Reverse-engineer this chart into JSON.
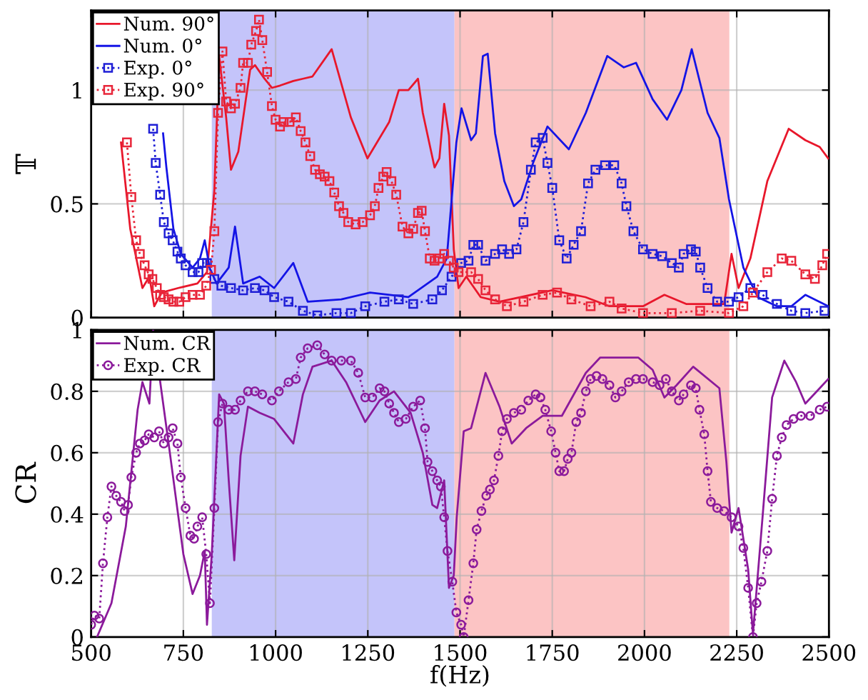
{
  "chart_data": [
    {
      "type": "line",
      "ylabel": "𝕋",
      "xlim": [
        500,
        2500
      ],
      "ylim": [
        0,
        1.35
      ],
      "xticks": [
        500,
        750,
        1000,
        1250,
        1500,
        1750,
        2000,
        2250,
        2500
      ],
      "yticks": [
        0,
        0.5,
        1
      ],
      "tick_labels": "y",
      "grid": true,
      "legend": "top left",
      "bands": [
        {
          "axis": "x",
          "from": 827,
          "to": 1485,
          "color": "#c4c4fa"
        },
        {
          "axis": "x",
          "from": 1485,
          "to": 2230,
          "color": "#fcc4c4"
        }
      ],
      "series": [
        {
          "name": "Num. 90°",
          "color": "#e8172b",
          "marker": "none",
          "line_style": "solid",
          "x": [
            581,
            606,
            639,
            658,
            671,
            691,
            736,
            788,
            814,
            834,
            847,
            866,
            879,
            899,
            931,
            944,
            970,
            990,
            1012,
            1048,
            1074,
            1100,
            1152,
            1204,
            1249,
            1308,
            1334,
            1360,
            1386,
            1399,
            1431,
            1444,
            1457,
            1470,
            1483,
            1496,
            1517,
            1556,
            1607,
            1750,
            1840,
            1905,
            1996,
            2054,
            2113,
            2216,
            2236,
            2255,
            2287,
            2333,
            2391,
            2436,
            2475,
            2498
          ],
          "values": [
            0.77,
            0.39,
            0.13,
            0.18,
            0.05,
            0.11,
            0.13,
            0.15,
            0.2,
            0.56,
            1.15,
            0.88,
            0.65,
            0.73,
            1.09,
            1.11,
            1.05,
            1.01,
            1.02,
            1.04,
            1.05,
            1.06,
            1.18,
            0.88,
            0.7,
            0.86,
            1.0,
            1.0,
            1.05,
            0.9,
            0.66,
            0.7,
            0.94,
            0.8,
            0.3,
            0.13,
            0.18,
            0.09,
            0.07,
            0.12,
            0.09,
            0.05,
            0.05,
            0.1,
            0.06,
            0.06,
            0.28,
            0.13,
            0.26,
            0.6,
            0.83,
            0.78,
            0.75,
            0.7
          ]
        },
        {
          "name": "Num. 0°",
          "color": "#1414e6",
          "marker": "none",
          "line_style": "solid",
          "x": [
            695,
            704,
            723,
            743,
            775,
            795,
            808,
            821,
            840,
            873,
            890,
            912,
            957,
            996,
            1048,
            1087,
            1178,
            1256,
            1360,
            1438,
            1464,
            1490,
            1504,
            1530,
            1543,
            1562,
            1575,
            1595,
            1620,
            1646,
            1666,
            1698,
            1737,
            1795,
            1841,
            1899,
            1944,
            1977,
            2022,
            2061,
            2100,
            2128,
            2171,
            2203,
            2229,
            2268,
            2307,
            2359,
            2398,
            2436,
            2498
          ],
          "values": [
            0.81,
            0.66,
            0.39,
            0.28,
            0.22,
            0.26,
            0.34,
            0.22,
            0.15,
            0.22,
            0.4,
            0.15,
            0.18,
            0.13,
            0.24,
            0.07,
            0.08,
            0.11,
            0.09,
            0.18,
            0.26,
            0.77,
            0.92,
            0.78,
            0.81,
            1.15,
            1.16,
            0.81,
            0.6,
            0.49,
            0.52,
            0.68,
            0.84,
            0.74,
            0.9,
            1.15,
            1.1,
            1.12,
            0.96,
            0.87,
            1.0,
            1.18,
            0.9,
            0.79,
            0.52,
            0.22,
            0.09,
            0.05,
            0.05,
            0.1,
            0.05
          ]
        },
        {
          "name": "Exp. 0°",
          "color": "#1f1fd6",
          "marker": "square",
          "line_style": "dotted",
          "x": [
            668,
            675,
            687,
            697,
            710,
            721,
            734,
            743,
            756,
            775,
            791,
            801,
            814,
            834,
            853,
            879,
            912,
            944,
            970,
            996,
            1035,
            1074,
            1113,
            1165,
            1204,
            1243,
            1295,
            1334,
            1373,
            1425,
            1451,
            1477,
            1503,
            1523,
            1536,
            1549,
            1569,
            1595,
            1614,
            1633,
            1653,
            1672,
            1692,
            1705,
            1724,
            1737,
            1750,
            1769,
            1789,
            1808,
            1828,
            1847,
            1867,
            1893,
            1918,
            1938,
            1951,
            1970,
            1996,
            2022,
            2048,
            2074,
            2093,
            2106,
            2126,
            2139,
            2151,
            2171,
            2197,
            2229,
            2255,
            2287,
            2320,
            2359,
            2398,
            2436,
            2488
          ],
          "values": [
            0.83,
            0.68,
            0.54,
            0.42,
            0.37,
            0.34,
            0.29,
            0.26,
            0.23,
            0.2,
            0.2,
            0.24,
            0.24,
            0.17,
            0.14,
            0.13,
            0.12,
            0.13,
            0.12,
            0.09,
            0.07,
            0.03,
            0.01,
            0.02,
            0.02,
            0.05,
            0.07,
            0.08,
            0.06,
            0.08,
            0.12,
            0.18,
            0.24,
            0.25,
            0.32,
            0.32,
            0.25,
            0.28,
            0.3,
            0.28,
            0.3,
            0.42,
            0.65,
            0.77,
            0.79,
            0.68,
            0.57,
            0.34,
            0.26,
            0.32,
            0.38,
            0.59,
            0.65,
            0.67,
            0.67,
            0.59,
            0.49,
            0.38,
            0.3,
            0.28,
            0.27,
            0.24,
            0.22,
            0.28,
            0.3,
            0.29,
            0.22,
            0.13,
            0.07,
            0.07,
            0.09,
            0.13,
            0.1,
            0.06,
            0.03,
            0.02,
            0.03
          ]
        },
        {
          "name": "Exp. 90°",
          "color": "#e8263a",
          "marker": "square",
          "line_style": "dotted",
          "x": [
            597,
            609,
            622,
            632,
            645,
            656,
            666,
            678,
            687,
            697,
            710,
            723,
            739,
            756,
            775,
            795,
            812,
            825,
            834,
            844,
            856,
            866,
            879,
            890,
            905,
            912,
            925,
            934,
            947,
            955,
            964,
            977,
            990,
            1000,
            1012,
            1022,
            1038,
            1055,
            1068,
            1081,
            1094,
            1107,
            1120,
            1133,
            1146,
            1159,
            1172,
            1184,
            1197,
            1217,
            1236,
            1256,
            1269,
            1279,
            1292,
            1301,
            1314,
            1327,
            1344,
            1360,
            1373,
            1386,
            1396,
            1405,
            1418,
            1431,
            1444,
            1457,
            1470,
            1483,
            1496,
            1530,
            1549,
            1569,
            1595,
            1627,
            1672,
            1724,
            1763,
            1802,
            1854,
            1905,
            1938,
            1996,
            2074,
            2151,
            2229,
            2268,
            2294,
            2333,
            2372,
            2398,
            2436,
            2462,
            2482,
            2495
          ],
          "values": [
            0.77,
            0.53,
            0.34,
            0.28,
            0.23,
            0.19,
            0.17,
            0.13,
            0.1,
            0.09,
            0.08,
            0.07,
            0.07,
            0.09,
            0.1,
            0.1,
            0.14,
            0.21,
            0.38,
            0.9,
            1.17,
            0.95,
            0.92,
            0.94,
            1.01,
            1.12,
            1.12,
            1.2,
            1.26,
            1.31,
            1.22,
            1.08,
            0.93,
            0.87,
            0.84,
            0.86,
            0.86,
            0.88,
            0.82,
            0.77,
            0.71,
            0.65,
            0.63,
            0.62,
            0.6,
            0.55,
            0.49,
            0.46,
            0.42,
            0.41,
            0.42,
            0.45,
            0.49,
            0.57,
            0.62,
            0.64,
            0.6,
            0.54,
            0.4,
            0.37,
            0.39,
            0.46,
            0.47,
            0.38,
            0.26,
            0.25,
            0.26,
            0.28,
            0.25,
            0.22,
            0.2,
            0.2,
            0.17,
            0.12,
            0.08,
            0.05,
            0.07,
            0.1,
            0.11,
            0.08,
            0.05,
            0.07,
            0.04,
            0.02,
            0.02,
            0.03,
            0.02,
            0.05,
            0.11,
            0.2,
            0.26,
            0.25,
            0.19,
            0.17,
            0.23,
            0.28
          ]
        }
      ]
    },
    {
      "type": "line",
      "xlabel": "f(Hz)",
      "ylabel": "CR",
      "xlim": [
        500,
        2500
      ],
      "ylim": [
        0,
        1
      ],
      "xticks": [
        500,
        750,
        1000,
        1250,
        1500,
        1750,
        2000,
        2250,
        2500
      ],
      "yticks": [
        0,
        0.2,
        0.4,
        0.6,
        0.8,
        1
      ],
      "grid": true,
      "legend": "top left",
      "bands": [
        {
          "axis": "x",
          "from": 827,
          "to": 1485,
          "color": "#c4c4fa"
        },
        {
          "axis": "x",
          "from": 1485,
          "to": 2230,
          "color": "#fcc4c4"
        }
      ],
      "series": [
        {
          "name": "Num. CR",
          "color": "#8b1a9b",
          "marker": "none",
          "line_style": "solid",
          "x": [
            516,
            555,
            594,
            626,
            639,
            658,
            668,
            710,
            750,
            775,
            795,
            808,
            814,
            827,
            847,
            860,
            873,
            888,
            905,
            925,
            957,
            996,
            1048,
            1074,
            1100,
            1152,
            1191,
            1243,
            1282,
            1321,
            1366,
            1399,
            1425,
            1438,
            1457,
            1470,
            1483,
            1491,
            1510,
            1530,
            1569,
            1607,
            1640,
            1679,
            1724,
            1776,
            1841,
            1880,
            1983,
            2022,
            2054,
            2087,
            2132,
            2203,
            2222,
            2236,
            2255,
            2281,
            2294,
            2320,
            2346,
            2379,
            2411,
            2436,
            2475,
            2498
          ],
          "values": [
            0.0,
            0.11,
            0.36,
            0.74,
            0.83,
            0.76,
            1.0,
            0.63,
            0.27,
            0.14,
            0.2,
            0.28,
            0.04,
            0.27,
            0.79,
            0.76,
            0.51,
            0.25,
            0.59,
            0.75,
            0.73,
            0.71,
            0.63,
            0.79,
            0.88,
            0.9,
            0.83,
            0.7,
            0.77,
            0.8,
            0.73,
            0.6,
            0.43,
            0.42,
            0.51,
            0.16,
            0.2,
            0.39,
            0.67,
            0.68,
            0.86,
            0.75,
            0.63,
            0.68,
            0.72,
            0.72,
            0.86,
            0.91,
            0.91,
            0.87,
            0.78,
            0.82,
            0.88,
            0.81,
            0.57,
            0.34,
            0.42,
            0.22,
            0.01,
            0.39,
            0.78,
            0.9,
            0.83,
            0.76,
            0.81,
            0.84
          ]
        },
        {
          "name": "Exp. CR",
          "color": "#8b1a9b",
          "marker": "circle",
          "line_style": "dotted",
          "x": [
            500,
            509,
            522,
            532,
            544,
            555,
            568,
            581,
            591,
            600,
            609,
            622,
            632,
            645,
            656,
            671,
            684,
            697,
            710,
            721,
            734,
            743,
            756,
            769,
            779,
            788,
            801,
            812,
            822,
            834,
            844,
            856,
            873,
            890,
            905,
            925,
            944,
            964,
            990,
            1009,
            1035,
            1055,
            1068,
            1087,
            1113,
            1133,
            1152,
            1178,
            1204,
            1224,
            1243,
            1262,
            1282,
            1295,
            1308,
            1321,
            1334,
            1353,
            1373,
            1392,
            1405,
            1412,
            1425,
            1438,
            1448,
            1457,
            1466,
            1479,
            1490,
            1503,
            1510,
            1523,
            1536,
            1545,
            1558,
            1571,
            1581,
            1592,
            1604,
            1614,
            1627,
            1646,
            1666,
            1685,
            1705,
            1718,
            1731,
            1747,
            1759,
            1769,
            1782,
            1792,
            1802,
            1815,
            1828,
            1841,
            1854,
            1870,
            1886,
            1905,
            1921,
            1938,
            1957,
            1977,
            1996,
            2022,
            2041,
            2058,
            2074,
            2093,
            2106,
            2126,
            2139,
            2149,
            2162,
            2171,
            2180,
            2197,
            2216,
            2236,
            2255,
            2268,
            2281,
            2294,
            2304,
            2317,
            2333,
            2346,
            2359,
            2372,
            2385,
            2404,
            2424,
            2449,
            2475,
            2495
          ],
          "values": [
            0.04,
            0.07,
            0.06,
            0.24,
            0.39,
            0.49,
            0.46,
            0.44,
            0.41,
            0.43,
            0.52,
            0.6,
            0.63,
            0.64,
            0.66,
            0.65,
            0.67,
            0.63,
            0.65,
            0.68,
            0.63,
            0.52,
            0.42,
            0.33,
            0.32,
            0.36,
            0.39,
            0.27,
            0.11,
            0.42,
            0.7,
            0.76,
            0.74,
            0.74,
            0.77,
            0.8,
            0.8,
            0.79,
            0.77,
            0.8,
            0.83,
            0.84,
            0.91,
            0.94,
            0.95,
            0.92,
            0.9,
            0.9,
            0.9,
            0.86,
            0.78,
            0.78,
            0.81,
            0.8,
            0.76,
            0.73,
            0.7,
            0.71,
            0.75,
            0.77,
            0.68,
            0.57,
            0.54,
            0.51,
            0.49,
            0.39,
            0.28,
            0.18,
            0.08,
            0.04,
            0.0,
            0.12,
            0.24,
            0.35,
            0.41,
            0.46,
            0.48,
            0.51,
            0.59,
            0.67,
            0.71,
            0.73,
            0.74,
            0.77,
            0.79,
            0.78,
            0.74,
            0.67,
            0.6,
            0.54,
            0.54,
            0.58,
            0.6,
            0.7,
            0.73,
            0.8,
            0.84,
            0.85,
            0.84,
            0.82,
            0.78,
            0.8,
            0.83,
            0.84,
            0.84,
            0.83,
            0.82,
            0.84,
            0.8,
            0.77,
            0.79,
            0.82,
            0.81,
            0.74,
            0.66,
            0.54,
            0.44,
            0.42,
            0.41,
            0.39,
            0.36,
            0.29,
            0.16,
            0.0,
            0.11,
            0.18,
            0.28,
            0.45,
            0.59,
            0.65,
            0.69,
            0.71,
            0.72,
            0.72,
            0.74,
            0.75
          ]
        }
      ]
    }
  ]
}
